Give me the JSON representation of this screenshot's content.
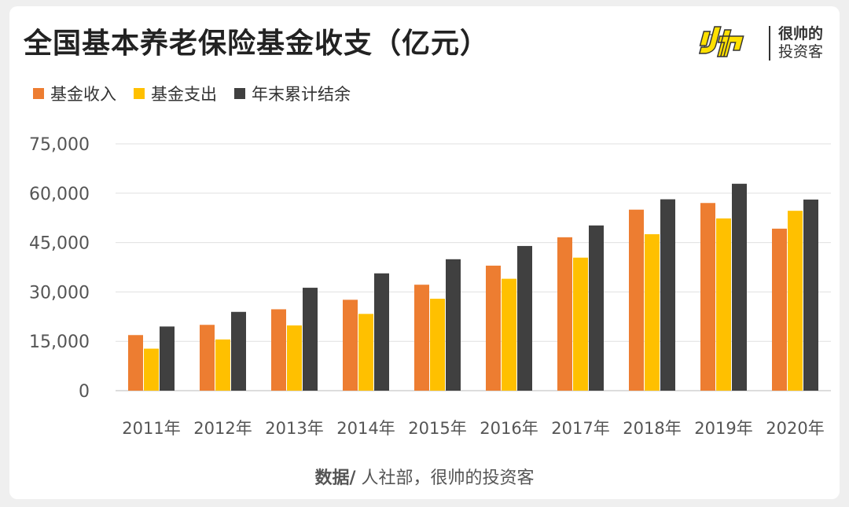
{
  "title": "全国基本养老保险基金收支（亿元）",
  "logo": {
    "text_line1": "很帅的",
    "text_line2": "投资客"
  },
  "source": {
    "label": "数据/",
    "text": " 人社部，很帅的投资客"
  },
  "chart_data": {
    "type": "bar",
    "title": "全国基本养老保险基金收支（亿元）",
    "categories": [
      "2011年",
      "2012年",
      "2013年",
      "2014年",
      "2015年",
      "2016年",
      "2017年",
      "2018年",
      "2019年",
      "2020年"
    ],
    "series": [
      {
        "name": "基金收入",
        "color": "#ed7d31",
        "values": [
          16895,
          20001,
          24733,
          27620,
          32195,
          37991,
          46614,
          55005,
          57026,
          49229
        ]
      },
      {
        "name": "基金支出",
        "color": "#ffc000",
        "values": [
          12765,
          15562,
          19819,
          23326,
          27929,
          34004,
          40424,
          47550,
          52342,
          54656
        ]
      },
      {
        "name": "年末累计结余",
        "color": "#404040",
        "values": [
          19497,
          23941,
          31275,
          35645,
          39937,
          43965,
          50202,
          58152,
          62873,
          58075
        ]
      }
    ],
    "yticks": [
      "0",
      "15,000",
      "30,000",
      "45,000",
      "60,000",
      "75,000"
    ],
    "ylim": [
      0,
      75000
    ],
    "grid": true,
    "legend": "top-left"
  }
}
